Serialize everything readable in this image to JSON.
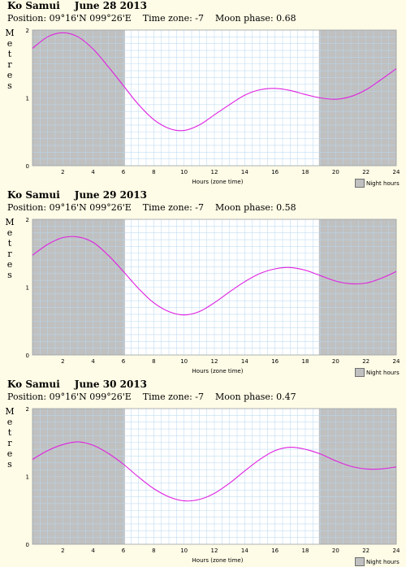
{
  "colors": {
    "night": "#c0c0c0",
    "day": "#ffffff",
    "grid": "#b8d8f0",
    "tide": "#e020e0",
    "background": "#fefbe6"
  },
  "chart_data": [
    {
      "type": "line",
      "location": "Ko Samui",
      "date": "June 28 2013",
      "position": "Position: 09°16'N 099°26'E",
      "timezone": "Time zone: -7",
      "moon": "Moon phase: 0.68",
      "xlabel": "Hours (zone time)",
      "ylabel": "Metres",
      "legend": "Night hours",
      "xlim": [
        0,
        24
      ],
      "ylim": [
        0,
        2
      ],
      "xticks": [
        2,
        4,
        6,
        8,
        10,
        12,
        14,
        16,
        18,
        20,
        22,
        24
      ],
      "yticks": [
        0,
        1,
        2
      ],
      "night": [
        [
          0,
          6.1
        ],
        [
          18.9,
          24
        ]
      ],
      "x": [
        0,
        1,
        2,
        3,
        4,
        5,
        6,
        7,
        8,
        9,
        10,
        11,
        12,
        13,
        14,
        15,
        16,
        17,
        18,
        19,
        20,
        21,
        22,
        23,
        24
      ],
      "y": [
        1.73,
        1.9,
        1.96,
        1.9,
        1.72,
        1.46,
        1.18,
        0.9,
        0.68,
        0.55,
        0.52,
        0.6,
        0.75,
        0.9,
        1.04,
        1.12,
        1.14,
        1.11,
        1.05,
        1.0,
        0.98,
        1.02,
        1.12,
        1.27,
        1.43
      ]
    },
    {
      "type": "line",
      "location": "Ko Samui",
      "date": "June 29 2013",
      "position": "Position: 09°16'N 099°26'E",
      "timezone": "Time zone: -7",
      "moon": "Moon phase: 0.58",
      "xlabel": "Hours (zone time)",
      "ylabel": "Metres",
      "legend": "Night hours",
      "xlim": [
        0,
        24
      ],
      "ylim": [
        0,
        2
      ],
      "xticks": [
        2,
        4,
        6,
        8,
        10,
        12,
        14,
        16,
        18,
        20,
        22,
        24
      ],
      "yticks": [
        0,
        1,
        2
      ],
      "night": [
        [
          0,
          6.1
        ],
        [
          18.9,
          24
        ]
      ],
      "x": [
        0,
        1,
        2,
        3,
        4,
        5,
        6,
        7,
        8,
        9,
        10,
        11,
        12,
        13,
        14,
        15,
        16,
        17,
        18,
        19,
        20,
        21,
        22,
        23,
        24
      ],
      "y": [
        1.47,
        1.63,
        1.73,
        1.74,
        1.66,
        1.47,
        1.23,
        0.98,
        0.77,
        0.64,
        0.59,
        0.64,
        0.77,
        0.93,
        1.08,
        1.2,
        1.27,
        1.29,
        1.25,
        1.17,
        1.09,
        1.05,
        1.06,
        1.13,
        1.23
      ]
    },
    {
      "type": "line",
      "location": "Ko Samui",
      "date": "June 30 2013",
      "position": "Position: 09°16'N 099°26'E",
      "timezone": "Time zone: -7",
      "moon": "Moon phase: 0.47",
      "xlabel": "Hours (zone time)",
      "ylabel": "Metres",
      "legend": "Night hours",
      "xlim": [
        0,
        24
      ],
      "ylim": [
        0,
        2
      ],
      "xticks": [
        2,
        4,
        6,
        8,
        10,
        12,
        14,
        16,
        18,
        20,
        22,
        24
      ],
      "yticks": [
        0,
        1,
        2
      ],
      "night": [
        [
          0,
          6.1
        ],
        [
          18.9,
          24
        ]
      ],
      "x": [
        0,
        1,
        2,
        3,
        4,
        5,
        6,
        7,
        8,
        9,
        10,
        11,
        12,
        13,
        14,
        15,
        16,
        17,
        18,
        19,
        20,
        21,
        22,
        23,
        24
      ],
      "y": [
        1.25,
        1.38,
        1.47,
        1.51,
        1.46,
        1.34,
        1.18,
        0.99,
        0.82,
        0.7,
        0.64,
        0.66,
        0.75,
        0.9,
        1.08,
        1.25,
        1.38,
        1.43,
        1.4,
        1.33,
        1.23,
        1.15,
        1.11,
        1.11,
        1.14
      ]
    }
  ]
}
